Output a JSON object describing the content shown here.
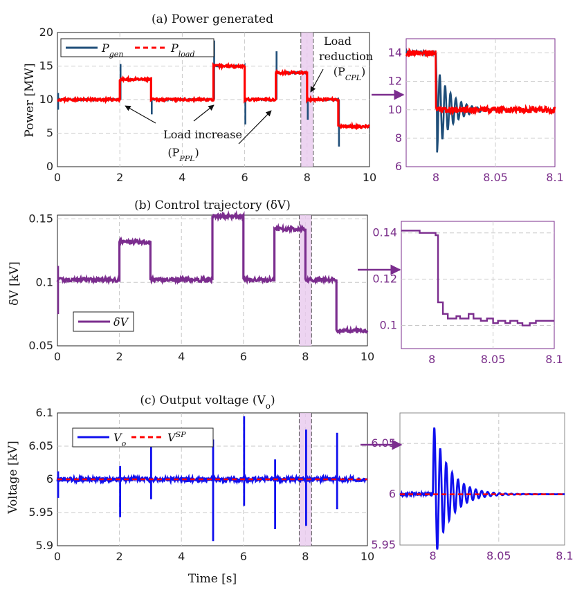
{
  "colors": {
    "gen": "#1f4e79",
    "load": "#ff0000",
    "dv": "#7b2d8e",
    "vo": "#1010ee",
    "vsp": "#ff0000",
    "purple": "#7b2d8e",
    "band": "#e8c9ee"
  },
  "chart_data": [
    {
      "id": "a",
      "type": "line",
      "title": "(a) Power generated",
      "ylabel": "Power [MW]",
      "xlabel": "",
      "xlim": [
        0,
        10
      ],
      "ylim": [
        0,
        20
      ],
      "xticks": [
        "0",
        "2",
        "4",
        "6",
        "8",
        "10"
      ],
      "yticks": [
        "0",
        "5",
        "10",
        "15",
        "20"
      ],
      "series": [
        {
          "name": "P_gen",
          "legend_main": "P",
          "legend_sub": "gen",
          "style": "solid",
          "x": [
            0,
            2,
            3,
            5,
            6,
            7,
            8,
            9,
            10
          ],
          "values": [
            10,
            13,
            10,
            15,
            10,
            14,
            10,
            6,
            6
          ]
        },
        {
          "name": "P_load",
          "legend_main": "P",
          "legend_sub": "load",
          "style": "dashed",
          "x": [
            0,
            2,
            3,
            5,
            6,
            7,
            8,
            9,
            10
          ],
          "values": [
            10,
            13,
            10,
            15,
            10,
            14,
            10,
            6,
            6
          ]
        }
      ],
      "spikes": [
        {
          "x": 0,
          "to": [
            11,
            8.5
          ]
        },
        {
          "x": 2,
          "to": [
            15.3
          ]
        },
        {
          "x": 3,
          "to": [
            7.8
          ]
        },
        {
          "x": 5,
          "to": [
            18.8
          ]
        },
        {
          "x": 6,
          "to": [
            6.3
          ]
        },
        {
          "x": 7,
          "to": [
            17.2
          ]
        },
        {
          "x": 8,
          "to": [
            7
          ]
        },
        {
          "x": 9,
          "to": [
            3
          ]
        }
      ],
      "highlight": [
        7.8,
        8.2
      ],
      "annotations": {
        "increase": "Load increase",
        "increase_sym": "(P",
        "increase_sub": "PPL",
        "increase_close": ")",
        "reduction1": "Load",
        "reduction2": "reduction",
        "reduction_sym": "(P",
        "reduction_sub": "CPL",
        "reduction_close": ")"
      }
    },
    {
      "id": "a_zoom",
      "type": "line",
      "xlim": [
        7.975,
        8.1
      ],
      "ylim": [
        6,
        15
      ],
      "xticks": [
        "8",
        "8.05",
        "8.1"
      ],
      "yticks": [
        "6",
        "8",
        "10",
        "12",
        "14"
      ],
      "series": [
        {
          "name": "P_gen",
          "x": [
            7.975,
            8,
            8.1
          ],
          "values": [
            14,
            10,
            10
          ],
          "osc": {
            "start": 8.001,
            "amp": 3,
            "decay": 0.012,
            "period": 0.0045
          }
        },
        {
          "name": "P_load",
          "x": [
            7.975,
            8,
            8.1
          ],
          "values": [
            14,
            10,
            10
          ]
        }
      ]
    },
    {
      "id": "b",
      "type": "line",
      "title": "(b) Control trajectory (δV)",
      "ylabel": "δV [kV]",
      "xlim": [
        0,
        10
      ],
      "ylim": [
        0.05,
        0.153
      ],
      "xticks": [
        "0",
        "2",
        "4",
        "6",
        "8",
        "10"
      ],
      "yticks": [
        "0.05",
        "0.1",
        "0.15"
      ],
      "series": [
        {
          "name": "δV",
          "x": [
            0,
            2,
            3,
            5,
            6,
            7,
            8,
            9,
            10
          ],
          "values": [
            0.102,
            0.132,
            0.102,
            0.152,
            0.102,
            0.142,
            0.102,
            0.062,
            0.062
          ]
        }
      ],
      "spike": {
        "x": 0,
        "to": [
          0.113,
          0.075
        ]
      },
      "highlight": [
        7.8,
        8.2
      ],
      "legend": "δV"
    },
    {
      "id": "b_zoom",
      "type": "step",
      "xlim": [
        7.975,
        8.1
      ],
      "ylim": [
        0.09,
        0.145
      ],
      "xticks": [
        "8",
        "8.05",
        "8.1"
      ],
      "yticks": [
        "0.1",
        "0.12",
        "0.14"
      ],
      "series": [
        {
          "name": "δV",
          "x": [
            7.975,
            7.98,
            7.99,
            8.003,
            8.005,
            8.009,
            8.013,
            8.02,
            8.023,
            8.03,
            8.034,
            8.04,
            8.045,
            8.05,
            8.054,
            8.06,
            8.064,
            8.07,
            8.074,
            8.08,
            8.085,
            8.09,
            8.1
          ],
          "values": [
            0.141,
            0.141,
            0.14,
            0.139,
            0.11,
            0.105,
            0.103,
            0.104,
            0.103,
            0.105,
            0.103,
            0.102,
            0.103,
            0.101,
            0.102,
            0.101,
            0.102,
            0.101,
            0.1,
            0.101,
            0.102,
            0.102,
            0.102
          ]
        }
      ]
    },
    {
      "id": "c",
      "type": "line",
      "title": "(c) Output voltage (V",
      "title_sub": "o",
      "title_close": ")",
      "ylabel": "Voltage [kV]",
      "xlabel": "Time [s]",
      "xlim": [
        0,
        10
      ],
      "ylim": [
        5.9,
        6.1
      ],
      "xticks": [
        "0",
        "2",
        "4",
        "6",
        "8",
        "10"
      ],
      "yticks": [
        "5.9",
        "5.95",
        "6",
        "6.05",
        "6.1"
      ],
      "series": [
        {
          "name": "V_o",
          "legend_main": "V",
          "legend_sub": "o",
          "x": [
            0,
            10
          ],
          "values": [
            6,
            6
          ]
        },
        {
          "name": "V^SP",
          "legend_main": "V",
          "legend_sup": "SP",
          "x": [
            0,
            10
          ],
          "values": [
            6,
            6
          ]
        }
      ],
      "spikes": [
        {
          "x": 0,
          "to": [
            6.012,
            5.972
          ]
        },
        {
          "x": 2,
          "to": [
            6.02,
            5.943
          ]
        },
        {
          "x": 3,
          "to": [
            6.05,
            5.97
          ]
        },
        {
          "x": 5,
          "to": [
            6.06,
            5.907
          ]
        },
        {
          "x": 6,
          "to": [
            6.095,
            5.96
          ]
        },
        {
          "x": 7,
          "to": [
            6.03,
            5.925
          ]
        },
        {
          "x": 8,
          "to": [
            6.075,
            5.93
          ]
        },
        {
          "x": 9,
          "to": [
            6.07,
            5.955
          ]
        }
      ],
      "highlight": [
        7.8,
        8.2
      ]
    },
    {
      "id": "c_zoom",
      "type": "line",
      "xlim": [
        7.975,
        8.1
      ],
      "ylim": [
        5.95,
        6.08
      ],
      "xticks": [
        "8",
        "8.05",
        "8.1"
      ],
      "yticks": [
        "5.95",
        "6",
        "6.05"
      ],
      "series": [
        {
          "name": "V_o",
          "x": [
            7.975,
            8.1
          ],
          "values": [
            6,
            6
          ],
          "osc": {
            "start": 8.0,
            "amp": 0.072,
            "decay": 0.012,
            "period": 0.0045
          }
        },
        {
          "name": "V^SP",
          "x": [
            7.975,
            8.1
          ],
          "values": [
            6,
            6
          ]
        }
      ]
    }
  ]
}
